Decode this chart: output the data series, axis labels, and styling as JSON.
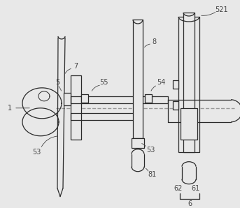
{
  "bg_color": "#e8e8e8",
  "line_color": "#2a2a2a",
  "dashed_color": "#999999",
  "label_color": "#444444",
  "fig_width": 3.43,
  "fig_height": 2.98,
  "dpi": 100
}
